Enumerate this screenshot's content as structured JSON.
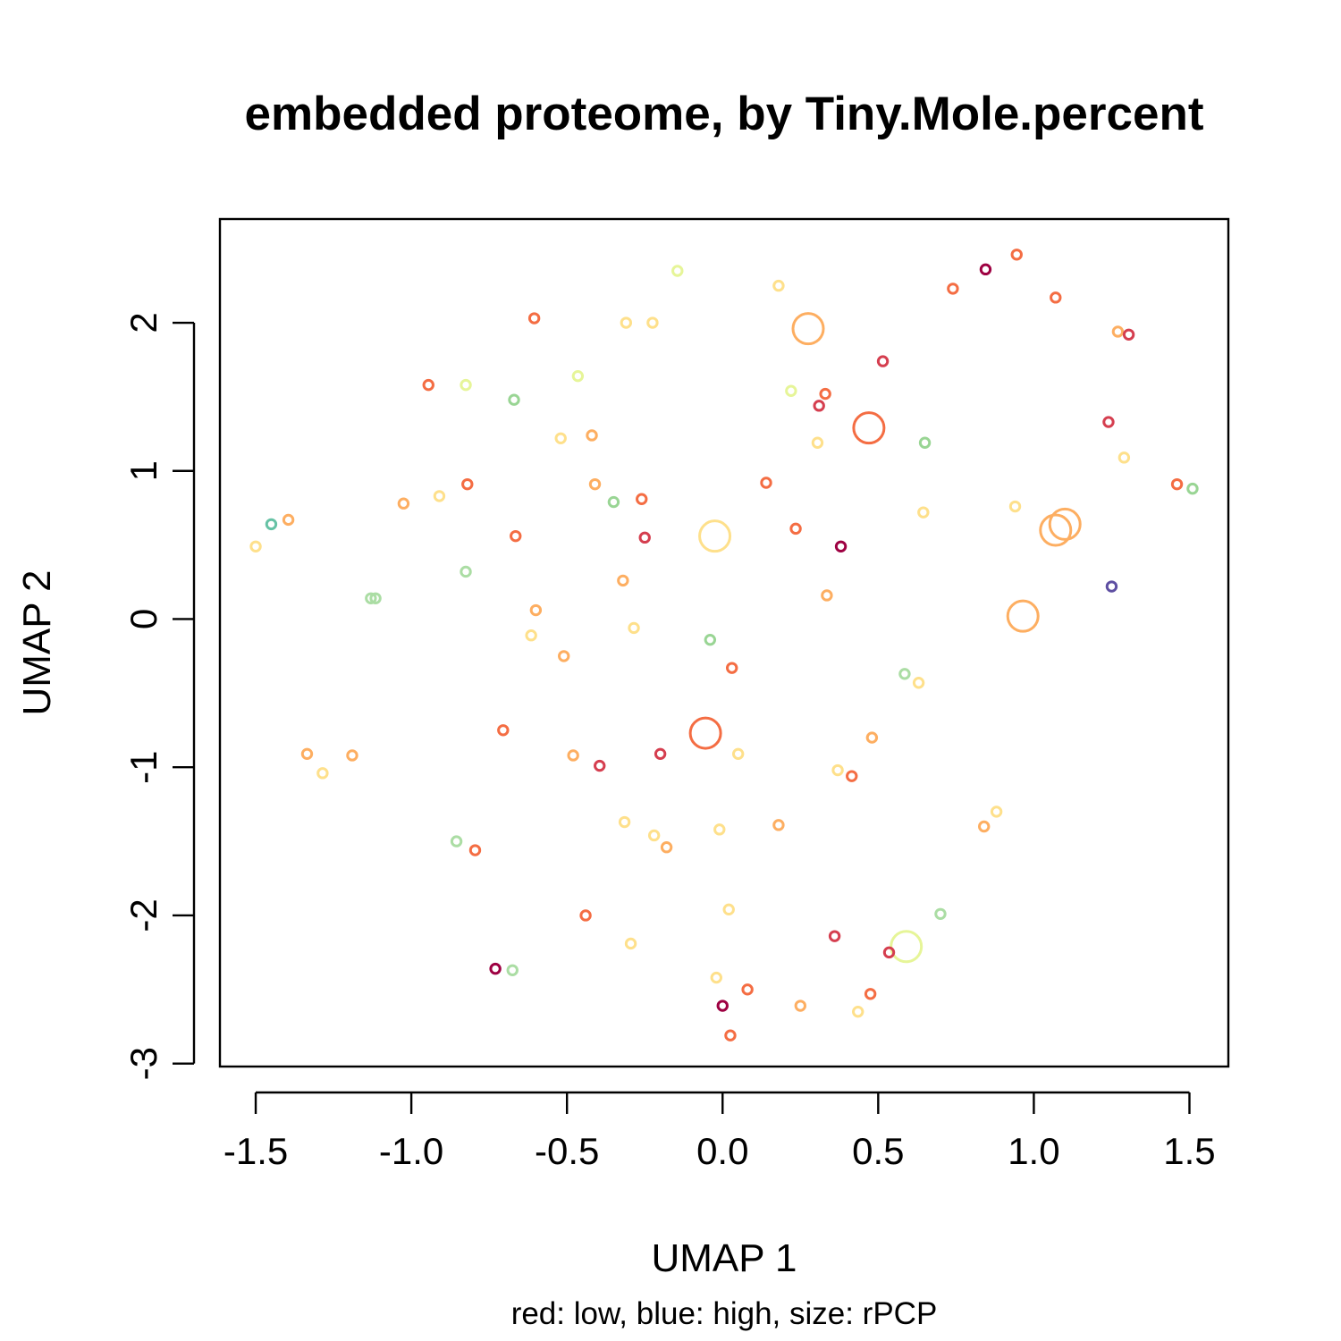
{
  "chart_data": {
    "type": "scatter",
    "title": "embedded proteome, by Tiny.Mole.percent",
    "xlabel": "UMAP 1",
    "ylabel": "UMAP 2",
    "subtitle": "red: low, blue: high, size: rPCP",
    "xlim": [
      -1.615,
      1.625
    ],
    "ylim": [
      -3.02,
      2.7
    ],
    "x_ticks": [
      -1.5,
      -1.0,
      -0.5,
      0.0,
      0.5,
      1.0,
      1.5
    ],
    "x_tick_labels": [
      "-1.5",
      "-1.0",
      "-0.5",
      "0.0",
      "0.5",
      "1.0",
      "1.5"
    ],
    "y_ticks": [
      -3,
      -2,
      -1,
      0,
      1,
      2
    ],
    "y_tick_labels": [
      "-3",
      "-2",
      "-1",
      "0",
      "1",
      "2"
    ],
    "grid": false,
    "legend": "none",
    "points": [
      {
        "x": -0.145,
        "y": 2.35,
        "color": "#e6f598",
        "size": 1
      },
      {
        "x": 0.18,
        "y": 2.25,
        "color": "#fee08b",
        "size": 1
      },
      {
        "x": 0.845,
        "y": 2.36,
        "color": "#9e0142",
        "size": 1
      },
      {
        "x": 0.945,
        "y": 2.46,
        "color": "#f46d43",
        "size": 1
      },
      {
        "x": 0.74,
        "y": 2.23,
        "color": "#f46d43",
        "size": 1
      },
      {
        "x": 1.07,
        "y": 2.17,
        "color": "#f46d43",
        "size": 1
      },
      {
        "x": -0.605,
        "y": 2.03,
        "color": "#f46d43",
        "size": 1
      },
      {
        "x": -0.31,
        "y": 2.0,
        "color": "#fee08b",
        "size": 1
      },
      {
        "x": -0.225,
        "y": 2.0,
        "color": "#fee08b",
        "size": 1
      },
      {
        "x": 0.275,
        "y": 1.96,
        "color": "#fdae61",
        "size": 4
      },
      {
        "x": 1.27,
        "y": 1.94,
        "color": "#fdae61",
        "size": 1
      },
      {
        "x": 1.305,
        "y": 1.92,
        "color": "#d53e4f",
        "size": 1
      },
      {
        "x": 0.515,
        "y": 1.74,
        "color": "#d53e4f",
        "size": 1
      },
      {
        "x": -0.945,
        "y": 1.58,
        "color": "#f46d43",
        "size": 1
      },
      {
        "x": -0.825,
        "y": 1.58,
        "color": "#e6f598",
        "size": 1
      },
      {
        "x": -0.465,
        "y": 1.64,
        "color": "#e6f598",
        "size": 1
      },
      {
        "x": -0.67,
        "y": 1.48,
        "color": "#99d594",
        "size": 1
      },
      {
        "x": 0.22,
        "y": 1.54,
        "color": "#e6f598",
        "size": 1
      },
      {
        "x": 0.33,
        "y": 1.52,
        "color": "#f46d43",
        "size": 1
      },
      {
        "x": 0.31,
        "y": 1.44,
        "color": "#d53e4f",
        "size": 1
      },
      {
        "x": 1.24,
        "y": 1.33,
        "color": "#d53e4f",
        "size": 1
      },
      {
        "x": 0.47,
        "y": 1.29,
        "color": "#f46d43",
        "size": 4
      },
      {
        "x": -0.52,
        "y": 1.22,
        "color": "#fee08b",
        "size": 1
      },
      {
        "x": -0.42,
        "y": 1.24,
        "color": "#fdae61",
        "size": 1
      },
      {
        "x": 0.305,
        "y": 1.19,
        "color": "#fee08b",
        "size": 1
      },
      {
        "x": 0.65,
        "y": 1.19,
        "color": "#99d594",
        "size": 1
      },
      {
        "x": 1.29,
        "y": 1.09,
        "color": "#fee08b",
        "size": 1
      },
      {
        "x": -0.82,
        "y": 0.91,
        "color": "#f46d43",
        "size": 1
      },
      {
        "x": -0.41,
        "y": 0.91,
        "color": "#fdae61",
        "size": 1
      },
      {
        "x": 0.14,
        "y": 0.92,
        "color": "#f46d43",
        "size": 1
      },
      {
        "x": 1.46,
        "y": 0.91,
        "color": "#f46d43",
        "size": 1
      },
      {
        "x": 1.51,
        "y": 0.88,
        "color": "#99d594",
        "size": 1
      },
      {
        "x": -0.91,
        "y": 0.83,
        "color": "#fee08b",
        "size": 1
      },
      {
        "x": -1.025,
        "y": 0.78,
        "color": "#fdae61",
        "size": 1
      },
      {
        "x": -0.35,
        "y": 0.79,
        "color": "#99d594",
        "size": 1
      },
      {
        "x": -0.26,
        "y": 0.81,
        "color": "#f46d43",
        "size": 1
      },
      {
        "x": 0.94,
        "y": 0.76,
        "color": "#fee08b",
        "size": 1
      },
      {
        "x": 0.645,
        "y": 0.72,
        "color": "#fee08b",
        "size": 1
      },
      {
        "x": -1.45,
        "y": 0.64,
        "color": "#66c2a5",
        "size": 1
      },
      {
        "x": -1.395,
        "y": 0.67,
        "color": "#fdae61",
        "size": 1
      },
      {
        "x": -1.5,
        "y": 0.49,
        "color": "#fee08b",
        "size": 1
      },
      {
        "x": -0.665,
        "y": 0.56,
        "color": "#f46d43",
        "size": 1
      },
      {
        "x": -0.025,
        "y": 0.56,
        "color": "#fee08b",
        "size": 4
      },
      {
        "x": 0.235,
        "y": 0.61,
        "color": "#f46d43",
        "size": 1
      },
      {
        "x": -0.25,
        "y": 0.55,
        "color": "#d53e4f",
        "size": 1
      },
      {
        "x": 0.38,
        "y": 0.49,
        "color": "#9e0142",
        "size": 1
      },
      {
        "x": 1.07,
        "y": 0.6,
        "color": "#fdae61",
        "size": 4
      },
      {
        "x": 1.1,
        "y": 0.64,
        "color": "#fdae61",
        "size": 4
      },
      {
        "x": -0.825,
        "y": 0.32,
        "color": "#abdda4",
        "size": 1
      },
      {
        "x": -0.32,
        "y": 0.26,
        "color": "#fdae61",
        "size": 1
      },
      {
        "x": 1.25,
        "y": 0.22,
        "color": "#5e4fa2",
        "size": 1
      },
      {
        "x": -1.13,
        "y": 0.14,
        "color": "#abdda4",
        "size": 1
      },
      {
        "x": -1.115,
        "y": 0.14,
        "color": "#abdda4",
        "size": 1
      },
      {
        "x": 0.335,
        "y": 0.16,
        "color": "#fdae61",
        "size": 1
      },
      {
        "x": -0.6,
        "y": 0.06,
        "color": "#fdae61",
        "size": 1
      },
      {
        "x": 0.965,
        "y": 0.02,
        "color": "#fdae61",
        "size": 4
      },
      {
        "x": -0.285,
        "y": -0.06,
        "color": "#fee08b",
        "size": 1
      },
      {
        "x": -0.615,
        "y": -0.11,
        "color": "#fee08b",
        "size": 1
      },
      {
        "x": -0.04,
        "y": -0.14,
        "color": "#99d594",
        "size": 1
      },
      {
        "x": -0.51,
        "y": -0.25,
        "color": "#fdae61",
        "size": 1
      },
      {
        "x": 0.03,
        "y": -0.33,
        "color": "#f46d43",
        "size": 1
      },
      {
        "x": 0.585,
        "y": -0.37,
        "color": "#abdda4",
        "size": 1
      },
      {
        "x": 0.63,
        "y": -0.43,
        "color": "#fee08b",
        "size": 1
      },
      {
        "x": -0.705,
        "y": -0.75,
        "color": "#f46d43",
        "size": 1
      },
      {
        "x": -0.055,
        "y": -0.77,
        "color": "#f46d43",
        "size": 4
      },
      {
        "x": 0.48,
        "y": -0.8,
        "color": "#fdae61",
        "size": 1
      },
      {
        "x": -1.335,
        "y": -0.91,
        "color": "#fdae61",
        "size": 1
      },
      {
        "x": -1.19,
        "y": -0.92,
        "color": "#fdae61",
        "size": 1
      },
      {
        "x": -0.48,
        "y": -0.92,
        "color": "#fdae61",
        "size": 1
      },
      {
        "x": -0.2,
        "y": -0.91,
        "color": "#d53e4f",
        "size": 1
      },
      {
        "x": 0.05,
        "y": -0.91,
        "color": "#fee08b",
        "size": 1
      },
      {
        "x": -0.395,
        "y": -0.99,
        "color": "#d53e4f",
        "size": 1
      },
      {
        "x": 0.37,
        "y": -1.02,
        "color": "#fee08b",
        "size": 1
      },
      {
        "x": 0.415,
        "y": -1.06,
        "color": "#f46d43",
        "size": 1
      },
      {
        "x": -1.285,
        "y": -1.04,
        "color": "#fee08b",
        "size": 1
      },
      {
        "x": 0.88,
        "y": -1.3,
        "color": "#fee08b",
        "size": 1
      },
      {
        "x": -0.315,
        "y": -1.37,
        "color": "#fee08b",
        "size": 1
      },
      {
        "x": 0.18,
        "y": -1.39,
        "color": "#fdae61",
        "size": 1
      },
      {
        "x": 0.84,
        "y": -1.4,
        "color": "#fdae61",
        "size": 1
      },
      {
        "x": -0.01,
        "y": -1.42,
        "color": "#fee08b",
        "size": 1
      },
      {
        "x": -0.22,
        "y": -1.46,
        "color": "#fee08b",
        "size": 1
      },
      {
        "x": -0.855,
        "y": -1.5,
        "color": "#abdda4",
        "size": 1
      },
      {
        "x": -0.18,
        "y": -1.54,
        "color": "#fdae61",
        "size": 1
      },
      {
        "x": -0.795,
        "y": -1.56,
        "color": "#f46d43",
        "size": 1
      },
      {
        "x": 0.02,
        "y": -1.96,
        "color": "#fee08b",
        "size": 1
      },
      {
        "x": -0.44,
        "y": -2.0,
        "color": "#f46d43",
        "size": 1
      },
      {
        "x": 0.7,
        "y": -1.99,
        "color": "#abdda4",
        "size": 1
      },
      {
        "x": 0.36,
        "y": -2.14,
        "color": "#d53e4f",
        "size": 1
      },
      {
        "x": -0.295,
        "y": -2.19,
        "color": "#fee08b",
        "size": 1
      },
      {
        "x": 0.59,
        "y": -2.21,
        "color": "#e6f598",
        "size": 4
      },
      {
        "x": 0.535,
        "y": -2.25,
        "color": "#d53e4f",
        "size": 1
      },
      {
        "x": -0.73,
        "y": -2.36,
        "color": "#9e0142",
        "size": 1
      },
      {
        "x": -0.675,
        "y": -2.37,
        "color": "#abdda4",
        "size": 1
      },
      {
        "x": -0.02,
        "y": -2.42,
        "color": "#fee08b",
        "size": 1
      },
      {
        "x": 0.08,
        "y": -2.5,
        "color": "#f46d43",
        "size": 1
      },
      {
        "x": 0.475,
        "y": -2.53,
        "color": "#f46d43",
        "size": 1
      },
      {
        "x": 0.0,
        "y": -2.61,
        "color": "#9e0142",
        "size": 1
      },
      {
        "x": 0.25,
        "y": -2.61,
        "color": "#fdae61",
        "size": 1
      },
      {
        "x": 0.435,
        "y": -2.65,
        "color": "#fee08b",
        "size": 1
      },
      {
        "x": 0.025,
        "y": -2.81,
        "color": "#f46d43",
        "size": 1
      }
    ]
  }
}
